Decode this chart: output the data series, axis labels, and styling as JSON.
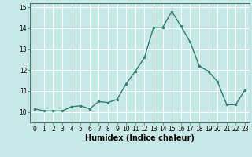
{
  "x": [
    0,
    1,
    2,
    3,
    4,
    5,
    6,
    7,
    8,
    9,
    10,
    11,
    12,
    13,
    14,
    15,
    16,
    17,
    18,
    19,
    20,
    21,
    22,
    23
  ],
  "y": [
    10.15,
    10.05,
    10.05,
    10.05,
    10.25,
    10.3,
    10.15,
    10.5,
    10.45,
    10.6,
    11.35,
    11.95,
    12.6,
    14.05,
    14.05,
    14.8,
    14.1,
    13.35,
    12.2,
    11.95,
    11.45,
    10.35,
    10.35,
    11.05
  ],
  "line_color": "#2e7d6e",
  "marker": "o",
  "markersize": 2.0,
  "linewidth": 1.0,
  "xlabel": "Humidex (Indice chaleur)",
  "xlabel_fontsize": 7,
  "xlabel_fontweight": "bold",
  "xlim": [
    -0.5,
    23.5
  ],
  "ylim": [
    9.5,
    15.2
  ],
  "yticks": [
    10,
    11,
    12,
    13,
    14,
    15
  ],
  "xticks": [
    0,
    1,
    2,
    3,
    4,
    5,
    6,
    7,
    8,
    9,
    10,
    11,
    12,
    13,
    14,
    15,
    16,
    17,
    18,
    19,
    20,
    21,
    22,
    23
  ],
  "background_color": "#c8e8e8",
  "grid_color": "#ffffff",
  "tick_fontsize": 5.5,
  "spine_color": "#4a7a70",
  "grid_linewidth": 0.7
}
